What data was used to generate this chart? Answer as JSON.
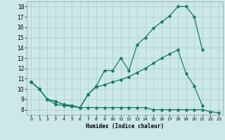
{
  "xlabel": "Humidex (Indice chaleur)",
  "bg_color": "#cce8e8",
  "line_color": "#1a7a6a",
  "grid_color": "#aacccc",
  "xlim": [
    -0.5,
    23.5
  ],
  "ylim": [
    7.5,
    18.5
  ],
  "xticks": [
    0,
    1,
    2,
    3,
    4,
    5,
    6,
    7,
    8,
    9,
    10,
    11,
    12,
    13,
    14,
    15,
    16,
    17,
    18,
    19,
    20,
    21,
    22,
    23
  ],
  "yticks": [
    8,
    9,
    10,
    11,
    12,
    13,
    14,
    15,
    16,
    17,
    18
  ],
  "line1_x": [
    0,
    1,
    2,
    3,
    4,
    5,
    6,
    7,
    8,
    9,
    10,
    11,
    12,
    13,
    14,
    15,
    16,
    17,
    18,
    19,
    20,
    21,
    22,
    23
  ],
  "line1_y": [
    10.7,
    10.0,
    9.0,
    8.5,
    8.4,
    8.3,
    8.2,
    8.2,
    8.2,
    8.2,
    8.2,
    8.2,
    8.2,
    8.2,
    8.2,
    8.0,
    8.0,
    8.0,
    8.0,
    8.0,
    8.0,
    8.0,
    7.8,
    7.7
  ],
  "line2_x": [
    0,
    1,
    2,
    3,
    4,
    5,
    6,
    7,
    8,
    9,
    10,
    11,
    12,
    13,
    14,
    15,
    16,
    17,
    18,
    19,
    20,
    21
  ],
  "line2_y": [
    10.7,
    10.0,
    9.0,
    8.8,
    8.5,
    8.4,
    8.2,
    9.5,
    10.2,
    10.4,
    10.7,
    10.9,
    11.2,
    11.6,
    12.0,
    12.5,
    13.0,
    13.4,
    13.8,
    11.5,
    10.3,
    8.4
  ],
  "line3_x": [
    0,
    1,
    2,
    3,
    4,
    5,
    6,
    7,
    8,
    9,
    10,
    11,
    12,
    13,
    14,
    15,
    16,
    17,
    18,
    19,
    20,
    21
  ],
  "line3_y": [
    10.7,
    10.0,
    9.0,
    8.8,
    8.5,
    8.4,
    8.2,
    9.5,
    10.3,
    11.8,
    11.8,
    13.0,
    11.8,
    14.3,
    15.0,
    15.9,
    16.5,
    17.1,
    18.0,
    18.0,
    17.0,
    13.8
  ]
}
